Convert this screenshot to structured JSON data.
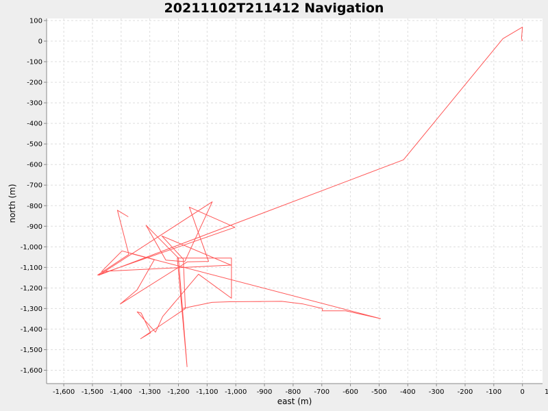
{
  "chart_data": {
    "type": "line",
    "title": "20211102T211412 Navigation",
    "xlabel": "east (m)",
    "ylabel": "north (m)",
    "xlim": [
      -1660,
      70
    ],
    "ylim": [
      -1665,
      110
    ],
    "grid": true,
    "x_ticks": [
      -1600,
      -1500,
      -1400,
      -1300,
      -1200,
      -1100,
      -1000,
      -900,
      -800,
      -700,
      -600,
      -500,
      -400,
      -300,
      -200,
      -100,
      0,
      100
    ],
    "y_ticks": [
      100,
      0,
      -100,
      -200,
      -300,
      -400,
      -500,
      -600,
      -700,
      -800,
      -900,
      -1000,
      -1100,
      -1200,
      -1300,
      -1400,
      -1500,
      -1600
    ],
    "x_tick_labels": [
      "-1,600",
      "-1,500",
      "-1,400",
      "-1,300",
      "-1,200",
      "-1,100",
      "-1,000",
      "-900",
      "-800",
      "-700",
      "-600",
      "-500",
      "-400",
      "-300",
      "-200",
      "-100",
      "0",
      "100"
    ],
    "y_tick_labels": [
      "100",
      "0",
      "-100",
      "-200",
      "-300",
      "-400",
      "-500",
      "-600",
      "-700",
      "-800",
      "-900",
      "-1,000",
      "-1,100",
      "-1,200",
      "-1,300",
      "-1,400",
      "-1,500",
      "-1,600"
    ],
    "series": [
      {
        "color": "#ff5555",
        "points": [
          [
            -1,
            0
          ],
          [
            -3,
            17
          ],
          [
            -2,
            35
          ],
          [
            0,
            68
          ],
          [
            -68,
            12
          ],
          [
            -415,
            -577
          ],
          [
            -1478,
            -1138
          ],
          [
            -1082,
            -781
          ],
          [
            -1178,
            -1072
          ],
          [
            -1244,
            -1065
          ],
          [
            -1313,
            -895
          ],
          [
            -1200,
            -1055
          ],
          [
            -1170,
            -1583
          ],
          [
            -1204,
            -1055
          ],
          [
            -1015,
            -1055
          ],
          [
            -1015,
            -1250
          ],
          [
            -1130,
            -1133
          ],
          [
            -1255,
            -1339
          ],
          [
            -1280,
            -1415
          ],
          [
            -1344,
            -1316
          ],
          [
            -1330,
            -1322
          ],
          [
            -1297,
            -1418
          ],
          [
            -1332,
            -1447
          ],
          [
            -1176,
            -1300
          ],
          [
            -1183,
            -1060
          ],
          [
            -1258,
            -947
          ],
          [
            -1017,
            -1089
          ],
          [
            -1468,
            -1120
          ],
          [
            -1397,
            -1020
          ],
          [
            -1284,
            -1062
          ],
          [
            -1344,
            -1209
          ],
          [
            -1403,
            -1278
          ],
          [
            -1169,
            -1073
          ],
          [
            -1095,
            -1071
          ],
          [
            -1162,
            -807
          ],
          [
            -1003,
            -905
          ],
          [
            -1482,
            -1137
          ],
          [
            -1373,
            -1037
          ],
          [
            -1413,
            -822
          ],
          [
            -1375,
            -854
          ]
        ]
      },
      {
        "color": "#ff5555",
        "points": [
          [
            -1184,
            -1299
          ],
          [
            -1083,
            -1270
          ],
          [
            -1022,
            -1267
          ],
          [
            -840,
            -1265
          ],
          [
            -765,
            -1278
          ],
          [
            -698,
            -1300
          ],
          [
            -698,
            -1311
          ],
          [
            -617,
            -1311
          ],
          [
            -495,
            -1349
          ],
          [
            -1368,
            -1032
          ]
        ]
      }
    ]
  }
}
